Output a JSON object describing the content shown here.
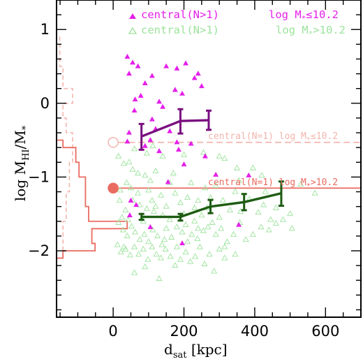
{
  "chart_data": {
    "type": "scatter",
    "xlabel": "d_sat [kpc]",
    "ylabel": "log M_HI/M_*",
    "xlim": [
      -160,
      700
    ],
    "ylim": [
      -2.9,
      1.4
    ],
    "x_ticks": [
      0,
      200,
      400,
      600
    ],
    "y_ticks": [
      -2,
      -1,
      0,
      1
    ],
    "grid": false,
    "legend_position": "top-right",
    "colors": {
      "low_mass_points": "#e41fe9",
      "high_mass_points": "#9ce39c",
      "low_mass_line": "#7a0f7f",
      "high_mass_line": "#1d5c12",
      "isolated": "#ea6b60",
      "isolated_faint": "#f3b5ad"
    },
    "legend": [
      {
        "marker": "filled-triangle",
        "label": "central(N>1)",
        "qualifier": "log M*≤10.2"
      },
      {
        "marker": "open-triangle",
        "label": "central(N>1)",
        "qualifier": "log M*>10.2"
      }
    ],
    "reference_lines": [
      {
        "label": "central(N=1) log M*≤10.2",
        "y": -0.53,
        "x_marker": 0,
        "style": "dashed",
        "marker": "open-circle"
      },
      {
        "label": "central(N=1) log M*>10.2",
        "y": -1.15,
        "x_marker": 0,
        "style": "solid",
        "marker": "filled-circle"
      }
    ],
    "series": [
      {
        "kind": "binned-median",
        "x": [
          80,
          190,
          270
        ],
        "y": [
          -0.45,
          -0.24,
          -0.23
        ],
        "yerr_low": [
          0.18,
          0.17,
          0.13
        ],
        "yerr_high": [
          0.17,
          0.16,
          0.13
        ]
      },
      {
        "kind": "binned-median",
        "x": [
          80,
          190,
          275,
          370,
          475
        ],
        "y": [
          -1.54,
          -1.54,
          -1.4,
          -1.34,
          -1.22
        ],
        "yerr_low": [
          0.04,
          0.05,
          0.09,
          0.11,
          0.17
        ],
        "yerr_high": [
          0.04,
          0.04,
          0.09,
          0.11,
          0.16
        ]
      }
    ],
    "scatter_low_mass": [
      [
        40,
        0.63
      ],
      [
        55,
        0.55
      ],
      [
        45,
        0.4
      ],
      [
        70,
        0.5
      ],
      [
        78,
        0.1
      ],
      [
        62,
        0.05
      ],
      [
        110,
        0.37
      ],
      [
        90,
        0.27
      ],
      [
        150,
        0.5
      ],
      [
        180,
        0.47
      ],
      [
        205,
        0.54
      ],
      [
        240,
        0.4
      ],
      [
        230,
        0.34
      ],
      [
        250,
        0.23
      ],
      [
        175,
        0.18
      ],
      [
        195,
        0.13
      ],
      [
        130,
        0.02
      ],
      [
        140,
        -0.05
      ],
      [
        110,
        -0.22
      ],
      [
        60,
        -0.1
      ],
      [
        120,
        -0.35
      ],
      [
        160,
        -0.38
      ],
      [
        105,
        -0.5
      ],
      [
        45,
        -0.4
      ],
      [
        40,
        -0.52
      ],
      [
        90,
        -0.58
      ],
      [
        130,
        -0.65
      ],
      [
        180,
        -0.53
      ],
      [
        220,
        -0.55
      ],
      [
        185,
        -0.63
      ],
      [
        260,
        -0.72
      ],
      [
        200,
        -0.83
      ],
      [
        50,
        -1.32
      ],
      [
        65,
        -1.38
      ],
      [
        47,
        -1.52
      ],
      [
        155,
        -1.07
      ],
      [
        105,
        -1.68
      ],
      [
        195,
        -1.9
      ],
      [
        383,
        -0.98
      ],
      [
        290,
        -0.97
      ],
      [
        355,
        -1.65
      ]
    ],
    "scatter_high_mass": [
      [
        15,
        -0.72
      ],
      [
        30,
        -0.82
      ],
      [
        45,
        -0.8
      ],
      [
        60,
        -0.62
      ],
      [
        95,
        -0.68
      ],
      [
        112,
        -0.58
      ],
      [
        140,
        -0.72
      ],
      [
        200,
        -0.7
      ],
      [
        255,
        -0.67
      ],
      [
        300,
        -0.72
      ],
      [
        315,
        -0.75
      ],
      [
        350,
        -0.88
      ],
      [
        395,
        -0.88
      ],
      [
        420,
        -0.98
      ],
      [
        345,
        -1.2
      ],
      [
        260,
        -1.15
      ],
      [
        220,
        -1.08
      ],
      [
        160,
        -1.08
      ],
      [
        120,
        -0.92
      ],
      [
        90,
        -0.98
      ],
      [
        55,
        -0.9
      ],
      [
        38,
        -1.08
      ],
      [
        20,
        -1.18
      ],
      [
        70,
        -1.22
      ],
      [
        100,
        -1.18
      ],
      [
        135,
        -1.25
      ],
      [
        175,
        -1.22
      ],
      [
        210,
        -1.28
      ],
      [
        240,
        -1.32
      ],
      [
        275,
        -1.28
      ],
      [
        310,
        -1.32
      ],
      [
        385,
        -1.3
      ],
      [
        425,
        -1.38
      ],
      [
        460,
        -1.42
      ],
      [
        500,
        -1.5
      ],
      [
        530,
        -1.1
      ],
      [
        570,
        -1.22
      ],
      [
        505,
        -1.7
      ],
      [
        445,
        -1.58
      ],
      [
        410,
        -1.48
      ],
      [
        360,
        -1.47
      ],
      [
        330,
        -1.45
      ],
      [
        300,
        -1.55
      ],
      [
        280,
        -1.62
      ],
      [
        250,
        -1.52
      ],
      [
        230,
        -1.6
      ],
      [
        205,
        -1.65
      ],
      [
        180,
        -1.68
      ],
      [
        160,
        -1.58
      ],
      [
        140,
        -1.52
      ],
      [
        115,
        -1.47
      ],
      [
        95,
        -1.43
      ],
      [
        75,
        -1.38
      ],
      [
        55,
        -1.32
      ],
      [
        35,
        -1.45
      ],
      [
        25,
        -1.55
      ],
      [
        15,
        -1.62
      ],
      [
        28,
        -1.72
      ],
      [
        40,
        -1.8
      ],
      [
        52,
        -1.67
      ],
      [
        62,
        -1.75
      ],
      [
        75,
        -1.85
      ],
      [
        88,
        -1.78
      ],
      [
        100,
        -1.88
      ],
      [
        112,
        -1.72
      ],
      [
        125,
        -1.8
      ],
      [
        138,
        -1.92
      ],
      [
        150,
        -1.7
      ],
      [
        165,
        -1.82
      ],
      [
        180,
        -1.95
      ],
      [
        195,
        -1.75
      ],
      [
        210,
        -1.88
      ],
      [
        222,
        -1.78
      ],
      [
        238,
        -1.84
      ],
      [
        255,
        -1.73
      ],
      [
        268,
        -1.68
      ],
      [
        290,
        -1.78
      ],
      [
        305,
        -1.7
      ],
      [
        322,
        -1.88
      ],
      [
        340,
        -1.78
      ],
      [
        358,
        -1.62
      ],
      [
        375,
        -1.85
      ],
      [
        395,
        -1.78
      ],
      [
        418,
        -1.68
      ],
      [
        440,
        -1.72
      ],
      [
        460,
        -1.63
      ],
      [
        480,
        -1.58
      ],
      [
        12,
        -1.92
      ],
      [
        22,
        -2.02
      ],
      [
        35,
        -1.98
      ],
      [
        48,
        -2.06
      ],
      [
        60,
        -1.95
      ],
      [
        72,
        -2.05
      ],
      [
        85,
        -1.98
      ],
      [
        98,
        -2.12
      ],
      [
        110,
        -1.95
      ],
      [
        122,
        -2.05
      ],
      [
        135,
        -2.1
      ],
      [
        148,
        -1.98
      ],
      [
        162,
        -2.08
      ],
      [
        175,
        -2.2
      ],
      [
        190,
        -2.12
      ],
      [
        205,
        -2.02
      ],
      [
        218,
        -2.15
      ],
      [
        232,
        -2.08
      ],
      [
        245,
        -1.95
      ],
      [
        258,
        -2.18
      ],
      [
        272,
        -2.05
      ],
      [
        285,
        -2.28
      ],
      [
        300,
        -1.98
      ],
      [
        315,
        -2.1
      ],
      [
        90,
        -2.22
      ],
      [
        130,
        -2.38
      ],
      [
        60,
        -2.3
      ],
      [
        150,
        -1.4
      ],
      [
        120,
        -1.4
      ],
      [
        50,
        -1.15
      ],
      [
        105,
        -1.05
      ],
      [
        265,
        -1.42
      ],
      [
        430,
        -1.2
      ],
      [
        30,
        -1.95
      ],
      [
        42,
        -1.58
      ],
      [
        18,
        -1.32
      ],
      [
        70,
        -0.95
      ],
      [
        170,
        -0.95
      ],
      [
        190,
        -1.35
      ],
      [
        230,
        -1.42
      ],
      [
        355,
        -1.05
      ],
      [
        290,
        -1.12
      ],
      [
        315,
        -1.95
      ],
      [
        345,
        -2.05
      ],
      [
        240,
        -1.7
      ],
      [
        85,
        -1.6
      ],
      [
        145,
        -1.85
      ],
      [
        200,
        -1.5
      ],
      [
        110,
        -1.32
      ]
    ],
    "histogram_high_mass": {
      "bin_edges": [
        -2.1,
        -2.0,
        -1.9,
        -1.8,
        -1.7,
        -1.6,
        -1.5,
        -1.4,
        -1.3,
        -1.2,
        -1.1,
        -1.0,
        -0.9,
        -0.8,
        -0.7,
        -0.6,
        -0.5,
        1.4
      ],
      "counts": [
        2,
        12,
        11,
        11,
        22,
        10,
        10,
        9,
        9,
        9,
        9,
        7,
        7,
        6,
        6,
        2,
        0
      ]
    },
    "histogram_low_mass": {
      "bin_edges": [
        -2.1,
        -1.6,
        -1.2,
        -0.8,
        -0.4,
        -0.2,
        0.0,
        0.2,
        0.5,
        0.7,
        0.9,
        1.4
      ],
      "counts": [
        2,
        3,
        4,
        5,
        3,
        2,
        5,
        2,
        1,
        1,
        0
      ]
    }
  },
  "text": {
    "x_tick_labels": [
      "0",
      "200",
      "400",
      "600"
    ],
    "y_tick_labels": [
      "−2",
      "−1",
      "0",
      "1"
    ],
    "xlabel_main": "d",
    "xlabel_sub": "sat",
    "xlabel_unit": " [kpc]",
    "ylabel_main": "log M",
    "ylabel_sub": "HI",
    "ylabel_slash": "/M",
    "ylabel_star": "*",
    "legend_1_label": "central(N>1)",
    "legend_1_qual_a": "log M",
    "legend_1_qual_b": "≤10.2",
    "legend_2_label": "central(N>1)",
    "legend_2_qual_a": "log M",
    "legend_2_qual_b": ">10.2",
    "ref_1_text_a": "central(N=1) log M",
    "ref_1_text_b": "≤10.2",
    "ref_2_text_a": "central(N=1) log M",
    "ref_2_text_b": ">10.2",
    "star": "*"
  }
}
